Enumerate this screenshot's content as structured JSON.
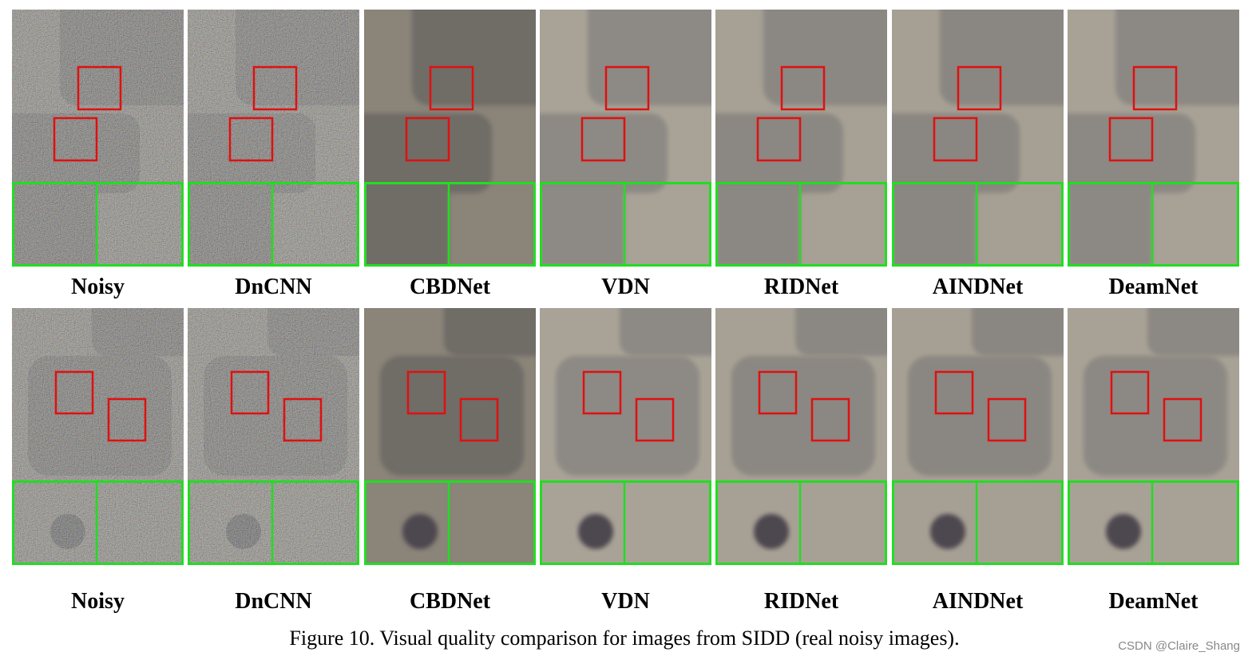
{
  "rows": [
    {
      "labels": [
        "Noisy",
        "DnCNN",
        "CBDNet",
        "VDN",
        "RIDNet",
        "AINDNet",
        "DeamNet"
      ]
    },
    {
      "labels": [
        "Noisy",
        "DnCNN",
        "CBDNet",
        "VDN",
        "RIDNet",
        "AINDNet",
        "DeamNet"
      ]
    }
  ],
  "caption": "Figure 10. Visual quality comparison for images from SIDD (real noisy images).",
  "watermark": "CSDN @Claire_Shang"
}
